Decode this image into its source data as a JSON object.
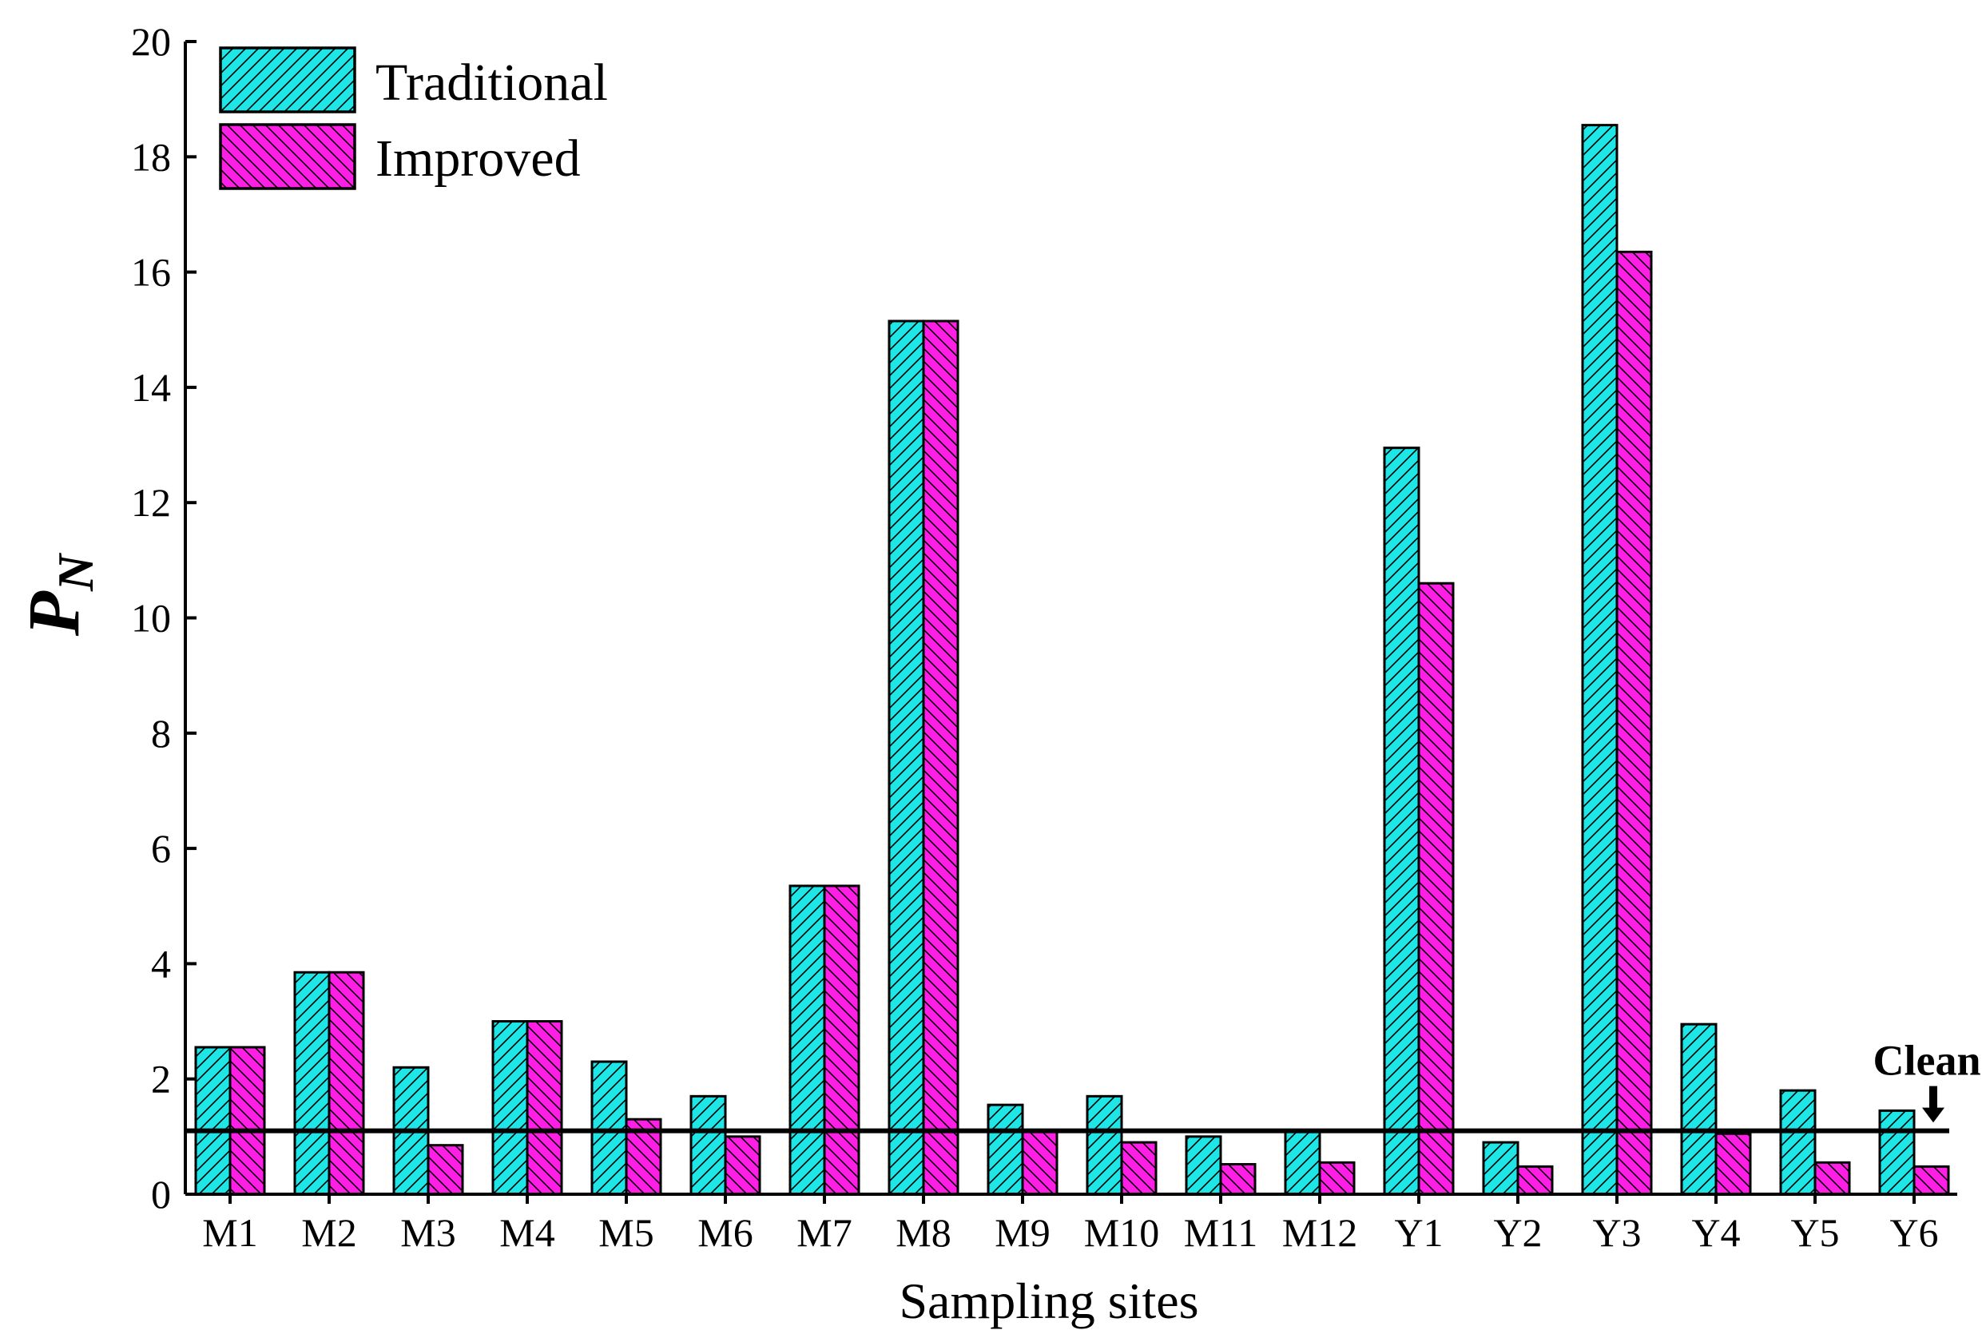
{
  "chart_data": {
    "type": "bar",
    "title": "",
    "xlabel": "Sampling sites",
    "ylabel": "P",
    "ylabel_subscript": "N",
    "ylim": [
      0,
      20
    ],
    "yticks": [
      0,
      2,
      4,
      6,
      8,
      10,
      12,
      14,
      16,
      18,
      20
    ],
    "grid": false,
    "legend_position": "top-left",
    "categories": [
      "M1",
      "M2",
      "M3",
      "M4",
      "M5",
      "M6",
      "M7",
      "M8",
      "M9",
      "M10",
      "M11",
      "M12",
      "Y1",
      "Y2",
      "Y3",
      "Y4",
      "Y5",
      "Y6"
    ],
    "series": [
      {
        "name": "Traditional",
        "color": "#1ee6e6",
        "hatch": "forward-diagonal",
        "values": [
          2.55,
          3.85,
          2.2,
          3.0,
          2.3,
          1.7,
          5.35,
          15.15,
          1.55,
          1.7,
          1.0,
          1.1,
          12.95,
          0.9,
          18.55,
          2.95,
          1.8,
          1.45
        ]
      },
      {
        "name": "Improved",
        "color": "#ff1ee6",
        "hatch": "backward-diagonal",
        "values": [
          2.55,
          3.85,
          0.85,
          3.0,
          1.3,
          1.0,
          5.35,
          15.15,
          1.1,
          0.9,
          0.52,
          0.55,
          10.6,
          0.48,
          16.35,
          1.05,
          0.55,
          0.48
        ]
      }
    ],
    "reference_line": {
      "value": 1.1
    },
    "annotation": {
      "text": "Clean",
      "category": "Y6"
    }
  }
}
